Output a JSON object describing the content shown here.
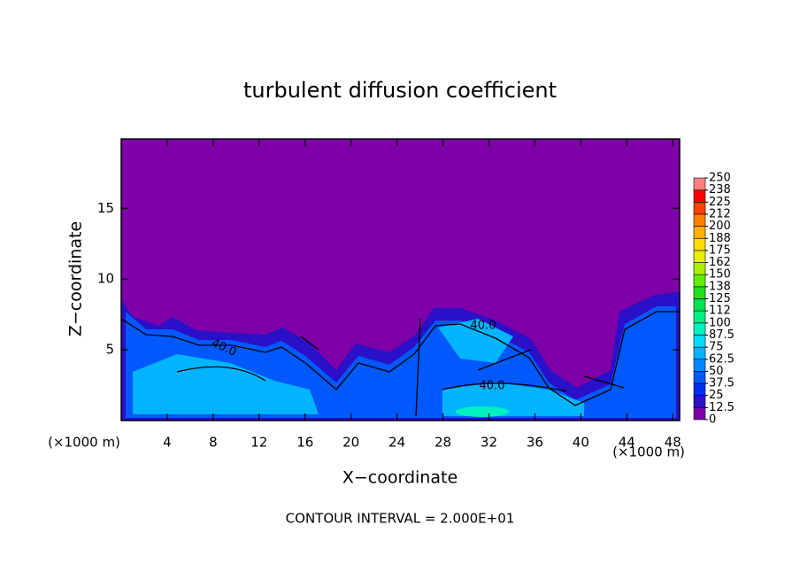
{
  "chart_data": {
    "type": "contour",
    "title": "turbulent diffusion coefficient",
    "xlabel": "X−coordinate",
    "ylabel": "Z−coordinate",
    "xunit": "(×1000 m)",
    "yunit": "(×1000 m)",
    "footer": "CONTOUR INTERVAL = 2.000E+01",
    "xlim": [
      0,
      48.6
    ],
    "xticks": [
      4,
      8,
      12,
      16,
      20,
      24,
      28,
      32,
      36,
      40,
      44,
      48
    ],
    "ylim": [
      0,
      19.9
    ],
    "yticks": [
      5,
      10,
      15
    ],
    "contour_labels": [
      "40.0",
      "40.0",
      "40.0"
    ],
    "levels": [
      0,
      12.5,
      25,
      37.5,
      50,
      62.5,
      75,
      87.5,
      100,
      {
        "value": 112.5,
        "label": "112"
      },
      125,
      {
        "value": 137.5,
        "label": "138"
      },
      150,
      {
        "value": 162.5,
        "label": "162"
      },
      175,
      {
        "value": 187.5,
        "label": "188"
      },
      200,
      {
        "value": 212.5,
        "label": "212"
      },
      225,
      {
        "value": 237.5,
        "label": "238"
      },
      250
    ],
    "colors": [
      "#7d00a8",
      "#2a10c8",
      "#0030f0",
      "#0058ff",
      "#0088ff",
      "#00b4ff",
      "#00dcff",
      "#00f0c0",
      "#00f088",
      "#00e050",
      "#20e020",
      "#60ee00",
      "#a8f000",
      "#e8f000",
      "#ffdc00",
      "#ffb000",
      "#ff8000",
      "#ff4000",
      "#ff0000",
      "#ff8080"
    ]
  }
}
